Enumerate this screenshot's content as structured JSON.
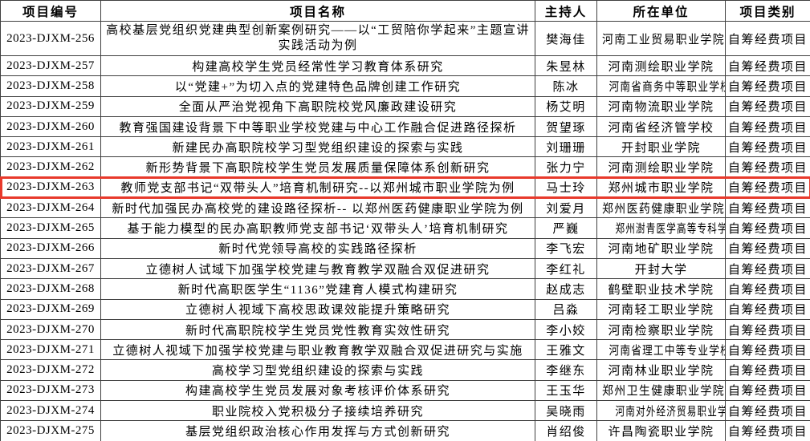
{
  "table": {
    "highlight_color": "#e8392b",
    "columns": [
      {
        "label": "项目编号"
      },
      {
        "label": "项目名称"
      },
      {
        "label": "主持人"
      },
      {
        "label": "所在单位"
      },
      {
        "label": "项目类别"
      }
    ],
    "rows": [
      {
        "id": "2023-DJXM-256",
        "name": "高校基层党组织党建典型创新案例研究——以“工贸陪你学起来”主题宣讲实践活动为例",
        "host": "樊海佳",
        "unit": "河南工业贸易职业学院",
        "category": "自筹经费项目",
        "highlighted": false
      },
      {
        "id": "2023-DJXM-257",
        "name": "构建高校学生党员经常性学习教育体系研究",
        "host": "朱昱林",
        "unit": "河南测绘职业学院",
        "category": "自筹经费项目",
        "highlighted": false
      },
      {
        "id": "2023-DJXM-258",
        "name": "以“党建+”为切入点的党建特色品牌创建工作研究",
        "host": "陈冰",
        "unit": "河南省商务中等职业学校",
        "category": "自筹经费项目",
        "highlighted": false
      },
      {
        "id": "2023-DJXM-259",
        "name": "全面从严治党视角下高职院校党风廉政建设研究",
        "host": "杨艾明",
        "unit": "河南物流职业学院",
        "category": "自筹经费项目",
        "highlighted": false
      },
      {
        "id": "2023-DJXM-260",
        "name": "教育强国建设背景下中等职业学校党建与中心工作融合促进路径探析",
        "host": "贺望琢",
        "unit": "河南省经济管学校",
        "category": "自筹经费项目",
        "highlighted": false
      },
      {
        "id": "2023-DJXM-261",
        "name": "新建民办高职院校学习型党组织建设的探索与实践",
        "host": "刘珊珊",
        "unit": "开封职业学院",
        "category": "自筹经费项目",
        "highlighted": false
      },
      {
        "id": "2023-DJXM-262",
        "name": "新形势背景下高职院校学生党员发展质量保障体系创新研究",
        "host": "张力宁",
        "unit": "河南测绘职业学院",
        "category": "自筹经费项目",
        "highlighted": false
      },
      {
        "id": "2023-DJXM-263",
        "name": "教师党支部书记“双带头人”培育机制研究--以郑州城市职业学院为例",
        "host": "马士玲",
        "unit": "郑州城市职业学院",
        "category": "自筹经费项目",
        "highlighted": true
      },
      {
        "id": "2023-DJXM-264",
        "name": "新时代加强民办高校党的建设路径探析-- 以郑州医药健康职业学院为例",
        "host": "刘爱月",
        "unit": "郑州医药健康职业学院",
        "category": "自筹经费项目",
        "highlighted": false
      },
      {
        "id": "2023-DJXM-265",
        "name": "基于能力模型的民办高职教师党支部书记‘双带头人’培育机制研究",
        "host": "严巍",
        "unit": "郑州澍青医学高等专科学校",
        "category": "自筹经费项目",
        "highlighted": false
      },
      {
        "id": "2023-DJXM-266",
        "name": "新时代党领导高校的实践路径探析",
        "host": "李飞宏",
        "unit": "河南地矿职业学院",
        "category": "自筹经费项目",
        "highlighted": false
      },
      {
        "id": "2023-DJXM-267",
        "name": "立德树人试域下加强学校党建与教育教学双融合双促进研究",
        "host": "李红礼",
        "unit": "开封大学",
        "category": "自筹经费项目",
        "highlighted": false
      },
      {
        "id": "2023-DJXM-268",
        "name": "新时代高职医学生“1136”党建育人模式构建研究",
        "host": "赵成志",
        "unit": "鹤壁职业技术学院",
        "category": "自筹经费项目",
        "highlighted": false
      },
      {
        "id": "2023-DJXM-269",
        "name": "立德树人视域下高校思政课效能提升策略研究",
        "host": "吕淼",
        "unit": "河南轻工职业学院",
        "category": "自筹经费项目",
        "highlighted": false
      },
      {
        "id": "2023-DJXM-270",
        "name": "新时代高职院校学生党员党性教育实效性研究",
        "host": "李小姣",
        "unit": "河南检察职业学院",
        "category": "自筹经费项目",
        "highlighted": false
      },
      {
        "id": "2023-DJXM-271",
        "name": "立德树人视域下加强学校党建与职业教育教学双融合双促进研究与实施",
        "host": "王雅文",
        "unit": "河南省理工中等专业学校",
        "category": "自筹经费项目",
        "highlighted": false
      },
      {
        "id": "2023-DJXM-272",
        "name": "高校学习型党组织建设的探索与实践",
        "host": "李继东",
        "unit": "河南林业职业学院",
        "category": "自筹经费项目",
        "highlighted": false
      },
      {
        "id": "2023-DJXM-273",
        "name": "构建高校学生党员发展对象考核评价体系研究",
        "host": "王玉华",
        "unit": "郑州卫生健康职业学院",
        "category": "自筹经费项目",
        "highlighted": false
      },
      {
        "id": "2023-DJXM-274",
        "name": "职业院校入党积极分子接续培养研究",
        "host": "吴晓雨",
        "unit": "河南对外经济贸易职业学院",
        "category": "自筹经费项目",
        "highlighted": false
      },
      {
        "id": "2023-DJXM-275",
        "name": "基层党组织政治核心作用发挥与方式创新研究",
        "host": "肖绍俊",
        "unit": "许昌陶瓷职业学院",
        "category": "自筹经费项目",
        "highlighted": false
      }
    ]
  }
}
